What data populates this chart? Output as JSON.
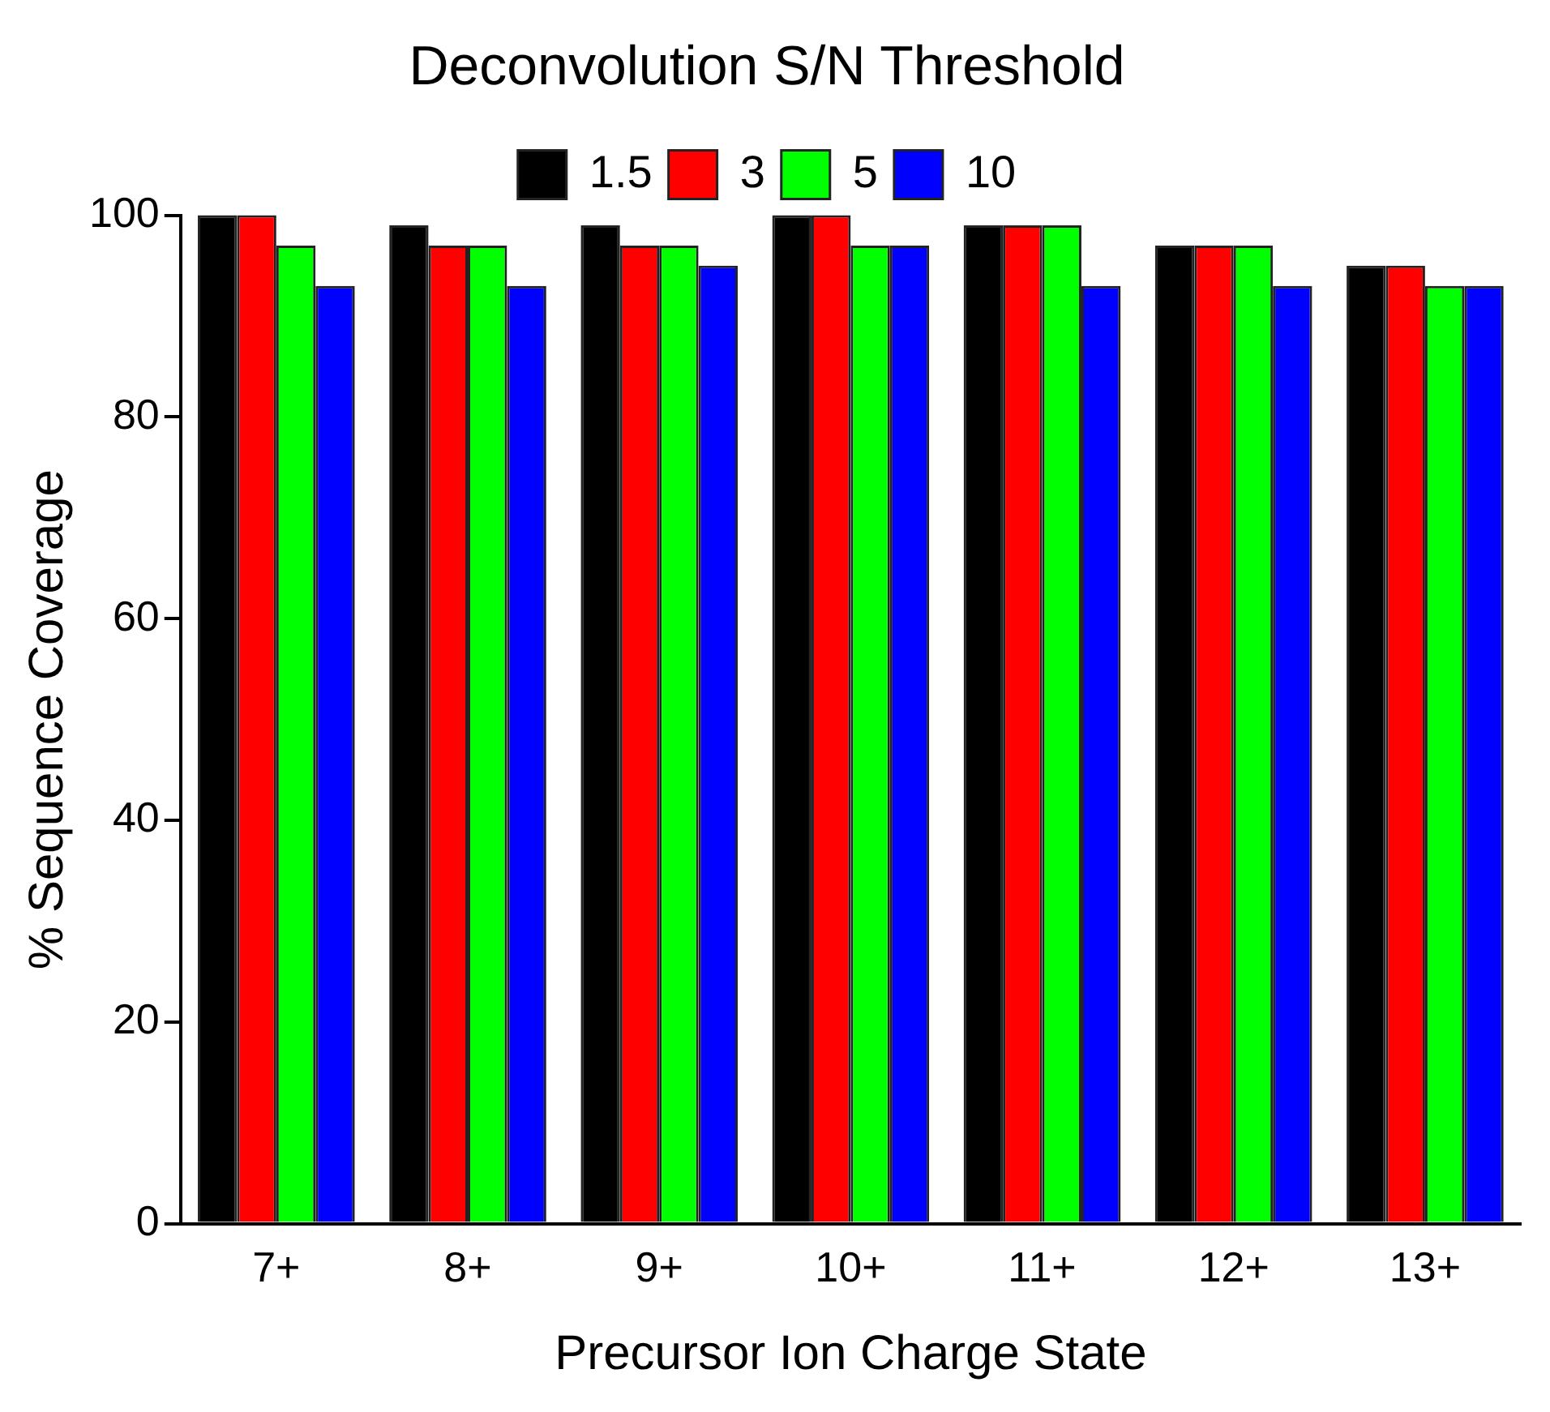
{
  "chart_data": {
    "type": "bar",
    "title": "Deconvolution S/N Threshold",
    "xlabel": "Precursor Ion Charge State",
    "ylabel": "% Sequence Coverage",
    "categories": [
      "7+",
      "8+",
      "9+",
      "10+",
      "11+",
      "12+",
      "13+"
    ],
    "series": [
      {
        "name": "1.5",
        "color": "#000000",
        "values": [
          100,
          99,
          99,
          100,
          99,
          97,
          95
        ]
      },
      {
        "name": "3",
        "color": "#ff0000",
        "values": [
          100,
          97,
          97,
          100,
          99,
          97,
          95
        ]
      },
      {
        "name": "5",
        "color": "#00ff00",
        "values": [
          97,
          97,
          97,
          97,
          99,
          97,
          93
        ]
      },
      {
        "name": "10",
        "color": "#0000ff",
        "values": [
          93,
          93,
          95,
          97,
          93,
          93,
          93
        ]
      }
    ],
    "ylim": [
      0,
      100
    ],
    "yticks": [
      0,
      20,
      40,
      60,
      80,
      100
    ],
    "grid": false,
    "legend": "top"
  }
}
